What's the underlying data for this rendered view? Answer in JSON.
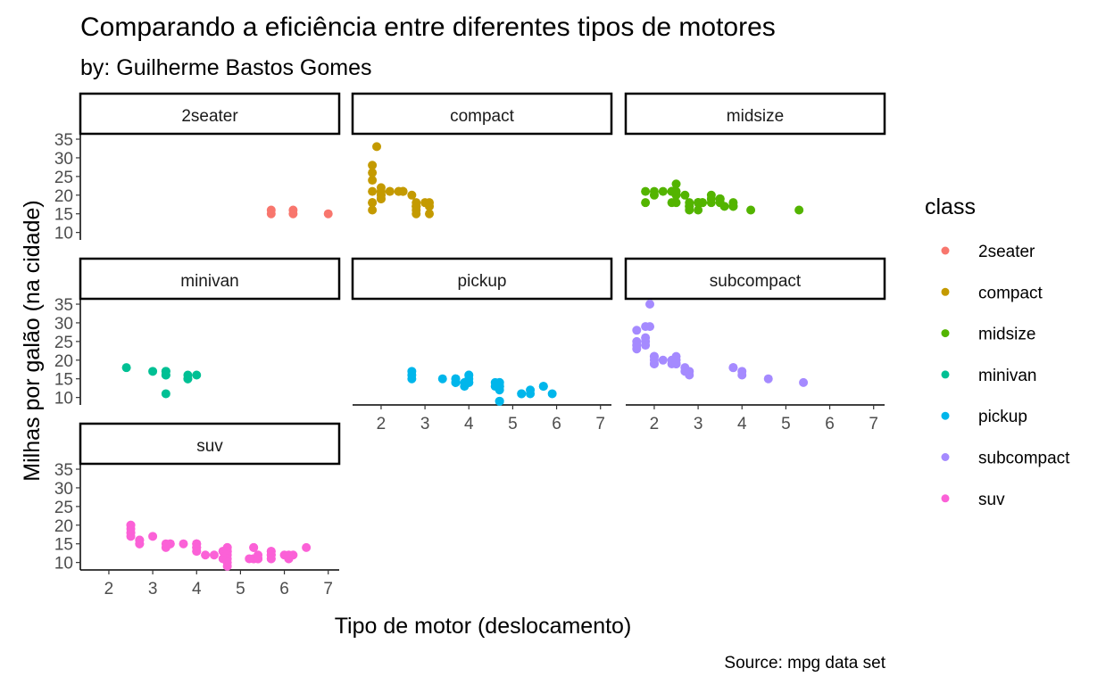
{
  "chart_data": {
    "type": "scatter",
    "title": "Comparando a eficiência entre diferentes tipos de motores",
    "subtitle": "by: Guilherme Bastos Gomes",
    "xlabel": "Tipo de motor (deslocamento)",
    "ylabel": "Milhas por galão (na cidade)",
    "caption": "Source: mpg data set",
    "legend_title": "class",
    "legend_position": "right",
    "xlim": [
      1.35,
      7.25
    ],
    "ylim": [
      8.0,
      36.2
    ],
    "x_ticks": [
      2,
      3,
      4,
      5,
      6,
      7
    ],
    "y_ticks": [
      10,
      15,
      20,
      25,
      30,
      35
    ],
    "grid": false,
    "series": [
      {
        "name": "2seater",
        "color": "#F8766D",
        "points": [
          [
            5.7,
            16
          ],
          [
            5.7,
            15
          ],
          [
            6.2,
            16
          ],
          [
            6.2,
            15
          ],
          [
            7.0,
            15
          ]
        ]
      },
      {
        "name": "compact",
        "color": "#C49A00",
        "points": [
          [
            1.8,
            18
          ],
          [
            1.8,
            21
          ],
          [
            2.0,
            20
          ],
          [
            2.0,
            21
          ],
          [
            2.8,
            16
          ],
          [
            2.8,
            18
          ],
          [
            3.1,
            18
          ],
          [
            1.8,
            18
          ],
          [
            1.8,
            16
          ],
          [
            2.0,
            20
          ],
          [
            2.0,
            19
          ],
          [
            2.8,
            15
          ],
          [
            2.8,
            17
          ],
          [
            3.1,
            17
          ],
          [
            3.1,
            15
          ],
          [
            2.2,
            21
          ],
          [
            2.2,
            21
          ],
          [
            2.4,
            21
          ],
          [
            2.4,
            21
          ],
          [
            3.0,
            18
          ],
          [
            1.9,
            33
          ],
          [
            2.0,
            21
          ],
          [
            2.0,
            19
          ],
          [
            2.0,
            22
          ],
          [
            2.0,
            21
          ],
          [
            2.5,
            21
          ],
          [
            2.5,
            21
          ],
          [
            2.8,
            17
          ],
          [
            1.8,
            24
          ],
          [
            1.8,
            26
          ],
          [
            1.8,
            28
          ],
          [
            2.5,
            21
          ],
          [
            2.7,
            20
          ],
          [
            2.8,
            17
          ]
        ]
      },
      {
        "name": "midsize",
        "color": "#53B400",
        "points": [
          [
            1.8,
            18
          ],
          [
            1.8,
            21
          ],
          [
            2.0,
            20
          ],
          [
            2.0,
            21
          ],
          [
            2.8,
            16
          ],
          [
            2.8,
            18
          ],
          [
            3.1,
            18
          ],
          [
            4.2,
            16
          ],
          [
            2.4,
            21
          ],
          [
            2.4,
            21
          ],
          [
            3.1,
            18
          ],
          [
            3.5,
            19
          ],
          [
            3.6,
            17
          ],
          [
            2.4,
            18
          ],
          [
            3.0,
            18
          ],
          [
            3.3,
            18
          ],
          [
            3.3,
            19
          ],
          [
            3.8,
            17
          ],
          [
            3.8,
            18
          ],
          [
            3.8,
            17
          ],
          [
            5.3,
            16
          ],
          [
            2.5,
            23
          ],
          [
            2.5,
            20
          ],
          [
            3.5,
            19
          ],
          [
            3.5,
            18
          ],
          [
            3.0,
            18
          ],
          [
            2.2,
            21
          ],
          [
            2.4,
            21
          ],
          [
            2.4,
            21
          ],
          [
            3.0,
            18
          ],
          [
            3.0,
            16
          ],
          [
            3.5,
            19
          ],
          [
            3.3,
            20
          ],
          [
            2.8,
            17
          ],
          [
            3.5,
            19
          ],
          [
            2.5,
            18
          ],
          [
            3.0,
            18
          ],
          [
            3.5,
            18
          ],
          [
            2.5,
            21
          ],
          [
            2.7,
            20
          ],
          [
            2.8,
            17
          ]
        ]
      },
      {
        "name": "minivan",
        "color": "#00C094",
        "points": [
          [
            2.4,
            18
          ],
          [
            3.0,
            17
          ],
          [
            3.3,
            16
          ],
          [
            3.3,
            17
          ],
          [
            3.3,
            16
          ],
          [
            3.3,
            17
          ],
          [
            3.3,
            11
          ],
          [
            3.8,
            15
          ],
          [
            3.8,
            15
          ],
          [
            3.8,
            16
          ],
          [
            4.0,
            16
          ]
        ]
      },
      {
        "name": "pickup",
        "color": "#00B6EB",
        "points": [
          [
            2.7,
            15
          ],
          [
            2.7,
            16
          ],
          [
            2.7,
            17
          ],
          [
            3.4,
            15
          ],
          [
            3.7,
            15
          ],
          [
            3.7,
            14
          ],
          [
            3.9,
            13
          ],
          [
            3.9,
            14
          ],
          [
            4.7,
            14
          ],
          [
            4.7,
            13
          ],
          [
            4.7,
            9
          ],
          [
            5.2,
            11
          ],
          [
            5.2,
            11
          ],
          [
            4.7,
            13
          ],
          [
            4.7,
            12
          ],
          [
            5.7,
            13
          ],
          [
            5.9,
            11
          ],
          [
            4.7,
            14
          ],
          [
            4.7,
            13
          ],
          [
            4.7,
            9
          ],
          [
            4.7,
            13
          ],
          [
            5.7,
            13
          ],
          [
            3.7,
            14
          ],
          [
            3.7,
            15
          ],
          [
            4.0,
            14
          ],
          [
            4.0,
            14
          ],
          [
            4.0,
            15
          ],
          [
            4.0,
            16
          ],
          [
            4.6,
            14
          ],
          [
            5.4,
            11
          ],
          [
            4.0,
            16
          ],
          [
            4.6,
            13
          ],
          [
            5.4,
            12
          ]
        ]
      },
      {
        "name": "subcompact",
        "color": "#A58AFF",
        "points": [
          [
            3.8,
            18
          ],
          [
            3.8,
            18
          ],
          [
            4.0,
            17
          ],
          [
            4.0,
            16
          ],
          [
            4.6,
            15
          ],
          [
            5.4,
            14
          ],
          [
            1.6,
            28
          ],
          [
            1.6,
            24
          ],
          [
            1.6,
            25
          ],
          [
            1.6,
            23
          ],
          [
            1.6,
            24
          ],
          [
            1.8,
            26
          ],
          [
            1.8,
            25
          ],
          [
            1.8,
            24
          ],
          [
            2.0,
            21
          ],
          [
            2.0,
            21
          ],
          [
            2.0,
            19
          ],
          [
            2.0,
            20
          ],
          [
            2.4,
            20
          ],
          [
            2.4,
            19
          ],
          [
            2.5,
            20
          ],
          [
            2.5,
            19
          ],
          [
            1.9,
            35
          ],
          [
            1.9,
            29
          ],
          [
            2.0,
            21
          ],
          [
            2.0,
            19
          ],
          [
            2.5,
            19
          ],
          [
            2.8,
            17
          ],
          [
            2.8,
            16
          ],
          [
            2.2,
            20
          ],
          [
            2.5,
            21
          ],
          [
            2.7,
            18
          ],
          [
            2.7,
            17
          ],
          [
            1.8,
            29
          ],
          [
            2.5,
            19
          ]
        ]
      },
      {
        "name": "suv",
        "color": "#FB61D7",
        "points": [
          [
            5.3,
            14
          ],
          [
            5.3,
            11
          ],
          [
            5.3,
            14
          ],
          [
            5.7,
            13
          ],
          [
            6.0,
            12
          ],
          [
            5.7,
            12
          ],
          [
            6.5,
            14
          ],
          [
            5.3,
            11
          ],
          [
            5.3,
            11
          ],
          [
            5.7,
            11
          ],
          [
            6.1,
            12
          ],
          [
            4.7,
            13
          ],
          [
            4.7,
            9
          ],
          [
            5.2,
            11
          ],
          [
            4.0,
            14
          ],
          [
            4.0,
            15
          ],
          [
            4.0,
            15
          ],
          [
            4.6,
            13
          ],
          [
            4.6,
            13
          ],
          [
            5.4,
            11
          ],
          [
            5.4,
            11
          ],
          [
            2.7,
            15
          ],
          [
            2.7,
            16
          ],
          [
            3.4,
            15
          ],
          [
            3.4,
            15
          ],
          [
            4.0,
            15
          ],
          [
            4.7,
            14
          ],
          [
            4.7,
            13
          ],
          [
            5.7,
            13
          ],
          [
            6.1,
            11
          ],
          [
            4.0,
            14
          ],
          [
            4.0,
            14
          ],
          [
            4.0,
            13
          ],
          [
            4.0,
            13
          ],
          [
            4.2,
            12
          ],
          [
            4.4,
            12
          ],
          [
            4.6,
            11
          ],
          [
            5.4,
            11
          ],
          [
            5.4,
            12
          ],
          [
            5.7,
            12
          ],
          [
            6.1,
            11
          ],
          [
            2.5,
            18
          ],
          [
            2.5,
            19
          ],
          [
            2.5,
            20
          ],
          [
            2.5,
            20
          ],
          [
            2.5,
            18
          ],
          [
            2.5,
            17
          ],
          [
            2.7,
            16
          ],
          [
            2.7,
            15
          ],
          [
            3.0,
            17
          ],
          [
            3.3,
            15
          ],
          [
            3.3,
            14
          ],
          [
            3.7,
            15
          ],
          [
            4.7,
            14
          ],
          [
            4.7,
            13
          ],
          [
            5.7,
            11
          ],
          [
            5.7,
            12
          ],
          [
            6.2,
            12
          ],
          [
            4.7,
            12
          ],
          [
            4.7,
            11
          ],
          [
            4.7,
            10
          ]
        ]
      }
    ]
  }
}
